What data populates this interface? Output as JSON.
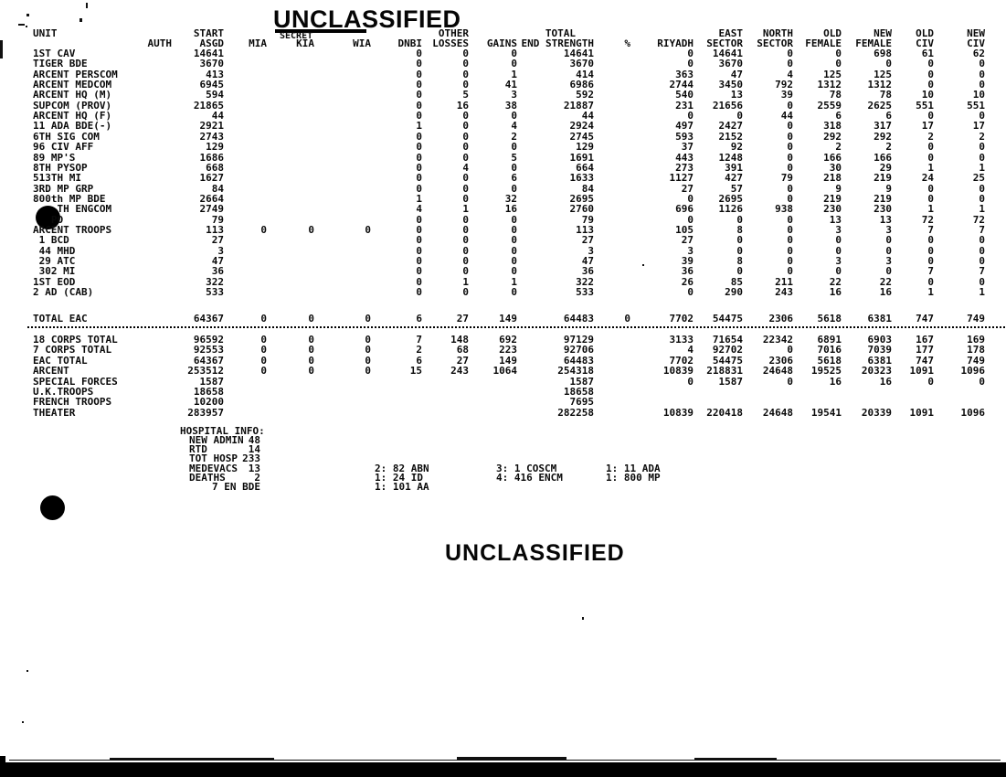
{
  "classification": {
    "top": "UNCLASSIFIED",
    "struck_out": "SECRET",
    "bottom": "UNCLASSIFIED"
  },
  "table": {
    "unit_header": "UNIT",
    "columns": [
      {
        "key": "auth",
        "l1": "",
        "l2": "AUTH"
      },
      {
        "key": "start_asgd",
        "l1": "START",
        "l2": "ASGD"
      },
      {
        "key": "mia",
        "l1": "",
        "l2": "MIA"
      },
      {
        "key": "kia",
        "l1": "",
        "l2": "KIA"
      },
      {
        "key": "wia",
        "l1": "",
        "l2": "WIA"
      },
      {
        "key": "dnbi",
        "l1": "",
        "l2": "DNBI"
      },
      {
        "key": "other_losses",
        "l1": "OTHER",
        "l2": "LOSSES"
      },
      {
        "key": "gains",
        "l1": "",
        "l2": "GAINS"
      },
      {
        "key": "end_strength",
        "l1": "TOTAL",
        "l2": "END STRENGTH"
      },
      {
        "key": "pct",
        "l1": "",
        "l2": "%"
      },
      {
        "key": "riyadh",
        "l1": "",
        "l2": "RIYADH"
      },
      {
        "key": "east_sector",
        "l1": "EAST",
        "l2": "SECTOR"
      },
      {
        "key": "north_sector",
        "l1": "NORTH",
        "l2": "SECTOR"
      },
      {
        "key": "old_female",
        "l1": "OLD",
        "l2": "FEMALE"
      },
      {
        "key": "new_female",
        "l1": "NEW",
        "l2": "FEMALE"
      },
      {
        "key": "old_civ",
        "l1": "OLD",
        "l2": "CIV"
      },
      {
        "key": "new_civ",
        "l1": "NEW",
        "l2": "CIV"
      }
    ],
    "rows": [
      {
        "unit": "1ST CAV",
        "values": [
          "",
          "14641",
          "",
          "",
          "",
          "0",
          "0",
          "0",
          "14641",
          "",
          "0",
          "14641",
          "0",
          "0",
          "698",
          "61",
          "62"
        ]
      },
      {
        "unit": "TIGER BDE",
        "values": [
          "",
          "3670",
          "",
          "",
          "",
          "0",
          "0",
          "0",
          "3670",
          "",
          "0",
          "3670",
          "0",
          "0",
          "0",
          "0",
          "0"
        ]
      },
      {
        "unit": "ARCENT PERSCOM",
        "values": [
          "",
          "413",
          "",
          "",
          "",
          "0",
          "0",
          "1",
          "414",
          "",
          "363",
          "47",
          "4",
          "125",
          "125",
          "0",
          "0"
        ]
      },
      {
        "unit": "ARCENT MEDCOM",
        "values": [
          "",
          "6945",
          "",
          "",
          "",
          "0",
          "0",
          "41",
          "6986",
          "",
          "2744",
          "3450",
          "792",
          "1312",
          "1312",
          "0",
          "0"
        ]
      },
      {
        "unit": "ARCENT HQ (M)",
        "values": [
          "",
          "594",
          "",
          "",
          "",
          "0",
          "5",
          "3",
          "592",
          "",
          "540",
          "13",
          "39",
          "78",
          "78",
          "10",
          "10"
        ]
      },
      {
        "unit": "SUPCOM (PROV)",
        "values": [
          "",
          "21865",
          "",
          "",
          "",
          "0",
          "16",
          "38",
          "21887",
          "",
          "231",
          "21656",
          "0",
          "2559",
          "2625",
          "551",
          "551"
        ]
      },
      {
        "unit": "ARCENT HQ (F)",
        "values": [
          "",
          "44",
          "",
          "",
          "",
          "0",
          "0",
          "0",
          "44",
          "",
          "0",
          "0",
          "44",
          "6",
          "6",
          "0",
          "0"
        ]
      },
      {
        "unit": "11 ADA BDE(-)",
        "values": [
          "",
          "2921",
          "",
          "",
          "",
          "1",
          "0",
          "4",
          "2924",
          "",
          "497",
          "2427",
          "0",
          "318",
          "317",
          "17",
          "17"
        ]
      },
      {
        "unit": "6TH SIG COM",
        "values": [
          "",
          "2743",
          "",
          "",
          "",
          "0",
          "0",
          "2",
          "2745",
          "",
          "593",
          "2152",
          "0",
          "292",
          "292",
          "2",
          "2"
        ]
      },
      {
        "unit": "96 CIV AFF",
        "values": [
          "",
          "129",
          "",
          "",
          "",
          "0",
          "0",
          "0",
          "129",
          "",
          "37",
          "92",
          "0",
          "2",
          "2",
          "0",
          "0"
        ]
      },
      {
        "unit": "89 MP'S",
        "values": [
          "",
          "1686",
          "",
          "",
          "",
          "0",
          "0",
          "5",
          "1691",
          "",
          "443",
          "1248",
          "0",
          "166",
          "166",
          "0",
          "0"
        ]
      },
      {
        "unit": "8TH PYSOP",
        "values": [
          "",
          "668",
          "",
          "",
          "",
          "0",
          "4",
          "0",
          "664",
          "",
          "273",
          "391",
          "0",
          "30",
          "29",
          "1",
          "1"
        ]
      },
      {
        "unit": "513TH MI",
        "values": [
          "",
          "1627",
          "",
          "",
          "",
          "0",
          "0",
          "6",
          "1633",
          "",
          "1127",
          "427",
          "79",
          "218",
          "219",
          "24",
          "25"
        ]
      },
      {
        "unit": "3RD MP GRP",
        "values": [
          "",
          "84",
          "",
          "",
          "",
          "0",
          "0",
          "0",
          "84",
          "",
          "27",
          "57",
          "0",
          "9",
          "9",
          "0",
          "0"
        ]
      },
      {
        "unit": "800th MP BDE",
        "values": [
          "",
          "2664",
          "",
          "",
          "",
          "1",
          "0",
          "32",
          "2695",
          "",
          "0",
          "2695",
          "0",
          "219",
          "219",
          "0",
          "0"
        ]
      },
      {
        "unit": "    TH ENGCOM",
        "values": [
          "",
          "2749",
          "",
          "",
          "",
          "4",
          "1",
          "16",
          "2760",
          "",
          "696",
          "1126",
          "938",
          "230",
          "230",
          "1",
          "1"
        ]
      },
      {
        "unit": "   PO",
        "values": [
          "",
          "79",
          "",
          "",
          "",
          "0",
          "0",
          "0",
          "79",
          "",
          "0",
          "0",
          "0",
          "13",
          "13",
          "72",
          "72"
        ]
      },
      {
        "unit": "ARCENT TROOPS",
        "values": [
          "",
          "113",
          "0",
          "0",
          "0",
          "0",
          "0",
          "0",
          "113",
          "",
          "105",
          "8",
          "0",
          "3",
          "3",
          "7",
          "7"
        ]
      },
      {
        "unit": " 1 BCD",
        "values": [
          "",
          "27",
          "",
          "",
          "",
          "0",
          "0",
          "0",
          "27",
          "",
          "27",
          "0",
          "0",
          "0",
          "0",
          "0",
          "0"
        ]
      },
      {
        "unit": " 44 MHD",
        "values": [
          "",
          "3",
          "",
          "",
          "",
          "0",
          "0",
          "0",
          "3",
          "",
          "3",
          "0",
          "0",
          "0",
          "0",
          "0",
          "0"
        ]
      },
      {
        "unit": " 29 ATC",
        "values": [
          "",
          "47",
          "",
          "",
          "",
          "0",
          "0",
          "0",
          "47",
          "",
          "39",
          "8",
          "0",
          "3",
          "3",
          "0",
          "0"
        ]
      },
      {
        "unit": " 302 MI",
        "values": [
          "",
          "36",
          "",
          "",
          "",
          "0",
          "0",
          "0",
          "36",
          "",
          "36",
          "0",
          "0",
          "0",
          "0",
          "7",
          "7"
        ]
      },
      {
        "unit": "1ST EOD",
        "values": [
          "",
          "322",
          "",
          "",
          "",
          "0",
          "1",
          "1",
          "322",
          "",
          "26",
          "85",
          "211",
          "22",
          "22",
          "0",
          "0"
        ]
      },
      {
        "unit": "2 AD (CAB)",
        "values": [
          "",
          "533",
          "",
          "",
          "",
          "0",
          "0",
          "0",
          "533",
          "",
          "0",
          "290",
          "243",
          "16",
          "16",
          "1",
          "1"
        ]
      }
    ],
    "total_row": {
      "unit": "TOTAL EAC",
      "values": [
        "",
        "64367",
        "0",
        "0",
        "0",
        "6",
        "27",
        "149",
        "64483",
        "0",
        "7702",
        "54475",
        "2306",
        "5618",
        "6381",
        "747",
        "749"
      ]
    },
    "summary_rows": [
      {
        "unit": "18 CORPS TOTAL",
        "values": [
          "",
          "96592",
          "0",
          "0",
          "0",
          "7",
          "148",
          "692",
          "97129",
          "",
          "3133",
          "71654",
          "22342",
          "6891",
          "6903",
          "167",
          "169"
        ]
      },
      {
        "unit": "7 CORPS TOTAL",
        "values": [
          "",
          "92553",
          "0",
          "0",
          "0",
          "2",
          "68",
          "223",
          "92706",
          "",
          "4",
          "92702",
          "0",
          "7016",
          "7039",
          "177",
          "178"
        ]
      },
      {
        "unit": "EAC TOTAL",
        "values": [
          "",
          "64367",
          "0",
          "0",
          "0",
          "6",
          "27",
          "149",
          "64483",
          "",
          "7702",
          "54475",
          "2306",
          "5618",
          "6381",
          "747",
          "749"
        ]
      },
      {
        "unit": "ARCENT",
        "values": [
          "",
          "253512",
          "0",
          "0",
          "0",
          "15",
          "243",
          "1064",
          "254318",
          "",
          "10839",
          "218831",
          "24648",
          "19525",
          "20323",
          "1091",
          "1096"
        ]
      },
      {
        "unit": "SPECIAL FORCES",
        "values": [
          "",
          "1587",
          "",
          "",
          "",
          "",
          "",
          "",
          "1587",
          "",
          "0",
          "1587",
          "0",
          "16",
          "16",
          "0",
          "0"
        ]
      },
      {
        "unit": "U.K.TROOPS",
        "values": [
          "",
          "18658",
          "",
          "",
          "",
          "",
          "",
          "",
          "18658",
          "",
          "",
          "",
          "",
          "",
          "",
          "",
          ""
        ]
      },
      {
        "unit": "FRENCH TROOPS",
        "values": [
          "",
          "10200",
          "",
          "",
          "",
          "",
          "",
          "",
          "7695",
          "",
          "",
          "",
          "",
          "",
          "",
          "",
          ""
        ]
      },
      {
        "unit": "THEATER",
        "values": [
          "",
          "283957",
          "",
          "",
          "",
          "",
          "",
          "",
          "282258",
          "",
          "10839",
          "220418",
          "24648",
          "19541",
          "20339",
          "1091",
          "1096"
        ]
      }
    ]
  },
  "hospital": {
    "title": "HOSPITAL INFO:",
    "stats": [
      {
        "label": "NEW ADMIN",
        "value": "48"
      },
      {
        "label": "RTD",
        "value": "14"
      },
      {
        "label": "TOT HOSP",
        "value": "233"
      },
      {
        "label": "MEDEVACS",
        "value": "13"
      },
      {
        "label": "DEATHS",
        "value": "2"
      },
      {
        "label": "",
        "value": "7 EN BDE"
      }
    ],
    "evac_columns": [
      [
        "2: 82 ABN",
        "1: 24 ID",
        "1: 101 AA"
      ],
      [
        "3: 1 COSCM",
        "4: 416 ENCM"
      ],
      [
        "1: 11 ADA",
        "1: 800 MP"
      ]
    ]
  }
}
